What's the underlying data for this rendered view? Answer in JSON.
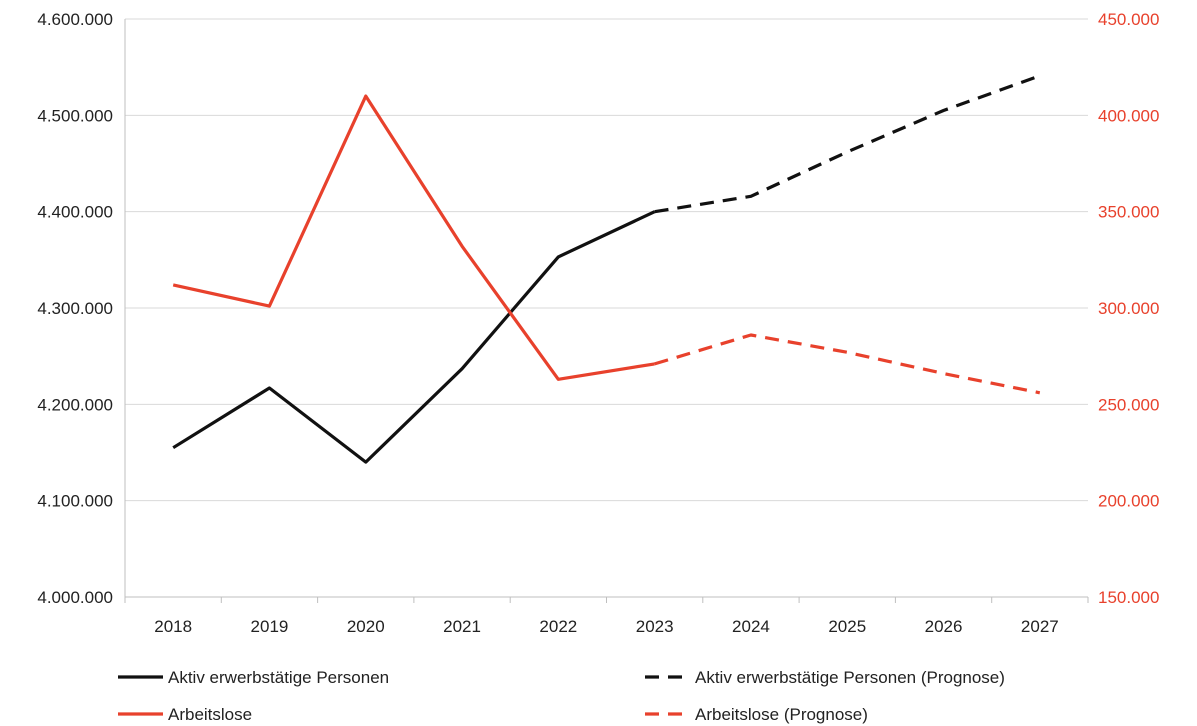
{
  "chart_data": {
    "type": "line",
    "categories": [
      "2018",
      "2019",
      "2020",
      "2021",
      "2022",
      "2023",
      "2024",
      "2025",
      "2026",
      "2027"
    ],
    "left_axis": {
      "ylim": [
        4000000,
        4600000
      ],
      "ticks": [
        4000000,
        4100000,
        4200000,
        4300000,
        4400000,
        4500000,
        4600000
      ],
      "tick_labels": [
        "4.000.000",
        "4.100.000",
        "4.200.000",
        "4.300.000",
        "4.400.000",
        "4.500.000",
        "4.600.000"
      ],
      "color": "#222222"
    },
    "right_axis": {
      "ylim": [
        150000,
        450000
      ],
      "ticks": [
        150000,
        200000,
        250000,
        300000,
        350000,
        400000,
        450000
      ],
      "tick_labels": [
        "150.000",
        "200.000",
        "250.000",
        "300.000",
        "350.000",
        "400.000",
        "450.000"
      ],
      "color": "#e8412c"
    },
    "grid": true,
    "legend_position": "bottom",
    "series": [
      {
        "name": "Aktiv erwerbstätige Personen",
        "axis": "left",
        "color": "#111111",
        "dashed": false,
        "x": [
          "2018",
          "2019",
          "2020",
          "2021",
          "2022",
          "2023"
        ],
        "values": [
          4155000,
          4217000,
          4140000,
          4237000,
          4353000,
          4400000
        ]
      },
      {
        "name": "Aktiv erwerbstätige Personen (Prognose)",
        "axis": "left",
        "color": "#111111",
        "dashed": true,
        "x": [
          "2023",
          "2024",
          "2025",
          "2026",
          "2027"
        ],
        "values": [
          4400000,
          4416000,
          4462000,
          4505000,
          4541000
        ]
      },
      {
        "name": "Arbeitslose",
        "axis": "right",
        "color": "#e8412c",
        "dashed": false,
        "x": [
          "2018",
          "2019",
          "2020",
          "2021",
          "2022",
          "2023"
        ],
        "values": [
          312000,
          301000,
          410000,
          332000,
          263000,
          271000
        ]
      },
      {
        "name": "Arbeitslose (Prognose)",
        "axis": "right",
        "color": "#e8412c",
        "dashed": true,
        "x": [
          "2023",
          "2024",
          "2025",
          "2026",
          "2027"
        ],
        "values": [
          271000,
          286000,
          277000,
          266000,
          256000
        ]
      }
    ]
  }
}
